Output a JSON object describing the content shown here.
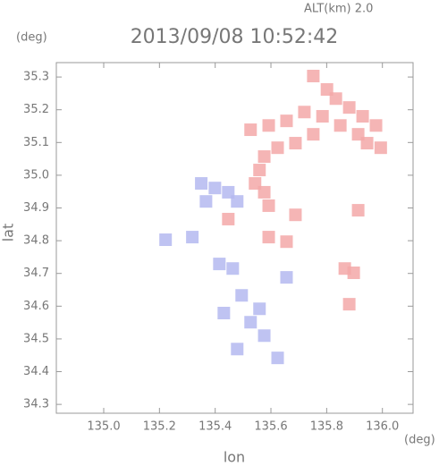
{
  "chart_data": {
    "type": "scatter",
    "title": "2013/09/08 10:52:42",
    "annotation": "ALT(km) 2.0",
    "y_unit": "(deg)",
    "x_unit": "(deg)",
    "xlabel": "lon",
    "ylabel": "lat",
    "xlim": [
      134.83,
      136.11
    ],
    "ylim": [
      34.273,
      35.344
    ],
    "xticks": [
      {
        "value": 135.0,
        "label": "135.0"
      },
      135.2,
      135.4,
      135.6,
      135.8,
      {
        "value": 136.0,
        "label": "136.0"
      }
    ],
    "yticks": [
      34.3,
      34.4,
      34.5,
      34.6,
      34.7,
      34.8,
      34.9,
      {
        "value": 35.0,
        "label": "35.0"
      },
      35.1,
      35.2,
      35.3
    ],
    "series": [
      {
        "color": "#f3a8a8",
        "x": [
          135.752,
          135.801,
          135.833,
          135.881,
          135.929,
          135.977,
          135.913,
          135.849,
          135.785,
          135.72,
          135.656,
          135.592,
          135.527,
          135.752,
          135.688,
          135.624,
          135.576,
          135.559,
          135.543,
          135.576,
          135.592,
          135.945,
          135.994,
          135.592,
          135.656,
          135.865,
          135.897,
          135.881,
          135.447,
          135.688,
          135.913
        ],
        "values": [
          35.303,
          35.262,
          35.234,
          35.207,
          35.18,
          35.152,
          35.125,
          35.152,
          35.18,
          35.193,
          35.166,
          35.152,
          35.139,
          35.125,
          35.098,
          35.084,
          35.057,
          35.016,
          34.975,
          34.948,
          34.907,
          35.098,
          35.084,
          34.811,
          34.797,
          34.715,
          34.702,
          34.606,
          34.866,
          34.879,
          34.893
        ]
      },
      {
        "color": "#b4b8f0",
        "x": [
          135.35,
          135.399,
          135.447,
          135.479,
          135.367,
          135.318,
          135.222,
          135.415,
          135.463,
          135.495,
          135.559,
          135.527,
          135.576,
          135.624,
          135.431,
          135.479,
          135.656
        ],
        "values": [
          34.975,
          34.961,
          34.948,
          34.92,
          34.92,
          34.811,
          34.803,
          34.729,
          34.715,
          34.633,
          34.592,
          34.551,
          34.51,
          34.442,
          34.579,
          34.469,
          34.688
        ]
      }
    ]
  }
}
